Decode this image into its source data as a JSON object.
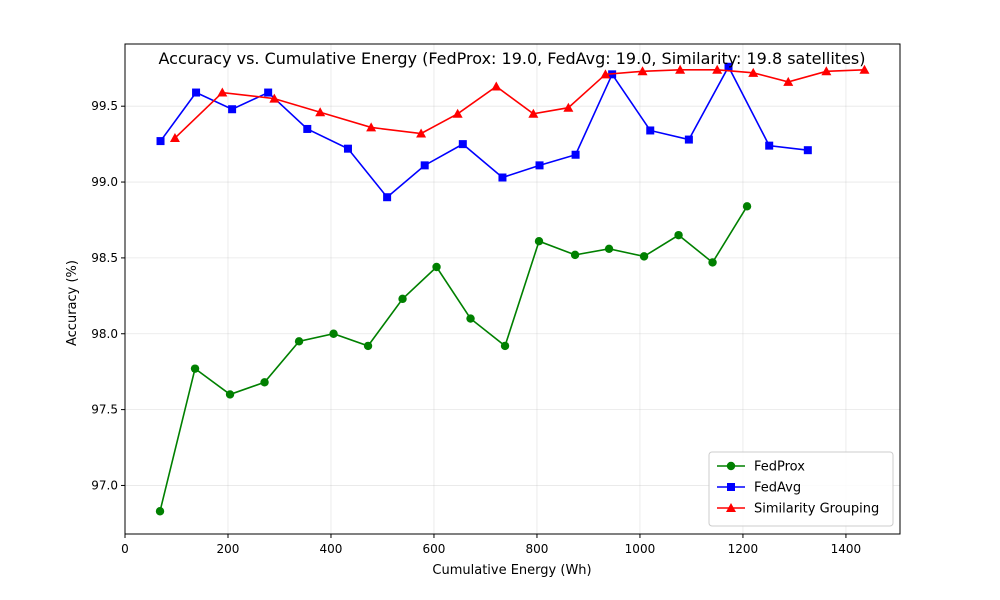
{
  "chart_data": {
    "type": "line",
    "title": "Accuracy vs. Cumulative Energy (FedProx: 19.0, FedAvg: 19.0, Similarity: 19.8 satellites)",
    "xlabel": "Cumulative Energy (Wh)",
    "ylabel": "Accuracy (%)",
    "xlim": [
      0,
      1505
    ],
    "ylim": [
      96.68,
      99.91
    ],
    "xticks": [
      0,
      200,
      400,
      600,
      800,
      1000,
      1200,
      1400
    ],
    "yticks": [
      97.0,
      97.5,
      98.0,
      98.5,
      99.0,
      99.5
    ],
    "ytick_labels": [
      "97.0",
      "97.5",
      "98.0",
      "98.5",
      "99.0",
      "99.5"
    ],
    "grid": true,
    "legend_position": "lower-right",
    "series": [
      {
        "name": "FedProx",
        "color": "#008000",
        "marker": "circle",
        "x": [
          68,
          136,
          204,
          271,
          338,
          405,
          472,
          539,
          605,
          671,
          738,
          804,
          874,
          940,
          1008,
          1075,
          1141,
          1208
        ],
        "y": [
          96.83,
          97.77,
          97.6,
          97.68,
          97.95,
          98.0,
          97.92,
          98.23,
          98.44,
          98.1,
          97.92,
          98.61,
          98.52,
          98.56,
          98.51,
          98.65,
          98.47,
          98.84
        ]
      },
      {
        "name": "FedAvg",
        "color": "#0000ff",
        "marker": "square",
        "x": [
          69,
          138,
          208,
          278,
          354,
          433,
          509,
          582,
          656,
          733,
          805,
          875,
          946,
          1020,
          1095,
          1172,
          1251,
          1326
        ],
        "y": [
          99.27,
          99.59,
          99.48,
          99.59,
          99.35,
          99.22,
          98.9,
          99.11,
          99.25,
          99.03,
          99.11,
          99.18,
          99.71,
          99.34,
          99.28,
          99.76,
          99.24,
          99.21
        ]
      },
      {
        "name": "Similarity Grouping",
        "color": "#ff0000",
        "marker": "triangle",
        "x": [
          97,
          189,
          290,
          379,
          478,
          575,
          646,
          721,
          793,
          861,
          933,
          1005,
          1078,
          1150,
          1220,
          1288,
          1362,
          1436
        ],
        "y": [
          99.29,
          99.59,
          99.55,
          99.46,
          99.36,
          99.32,
          99.45,
          99.63,
          99.45,
          99.49,
          99.71,
          99.73,
          99.74,
          99.74,
          99.72,
          99.66,
          99.73,
          99.74
        ]
      }
    ]
  }
}
